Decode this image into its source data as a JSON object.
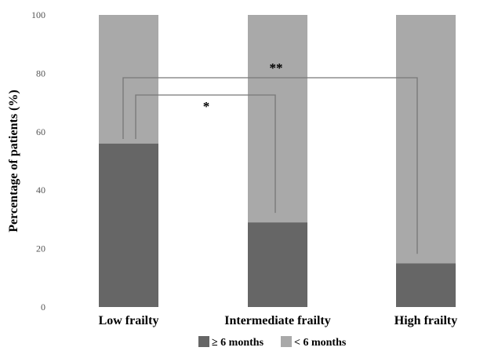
{
  "chart_data": {
    "type": "bar",
    "stacked": true,
    "categories": [
      "Low frailty",
      "Intermediate frailty",
      "High frailty"
    ],
    "series": [
      {
        "name": "≥ 6 months",
        "values": [
          56,
          29,
          15
        ],
        "color": "#666666"
      },
      {
        "name": "< 6 months",
        "values": [
          44,
          71,
          85
        ],
        "color": "#a9a9a9"
      }
    ],
    "ylabel": "Percentage of patients (%)",
    "xlabel": "",
    "title": "",
    "ylim": [
      0,
      100
    ],
    "yticks": [
      0,
      20,
      40,
      60,
      80,
      100
    ],
    "grid": false,
    "legend_position": "bottom",
    "annotations": [
      {
        "label": "*",
        "from": "Low frailty",
        "to": "Intermediate frailty"
      },
      {
        "label": "**",
        "from": "Low frailty",
        "to": "High frailty"
      }
    ]
  }
}
